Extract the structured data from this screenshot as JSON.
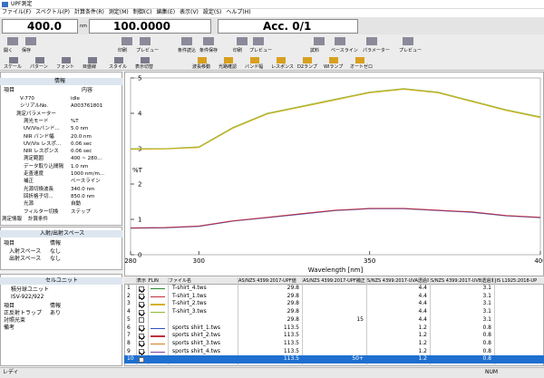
{
  "window": {
    "title": "UPF測定"
  },
  "menu": [
    "ファイル(F)",
    "スペクトル(P)",
    "計算条件(R)",
    "測定(M)",
    "制御(C)",
    "編集(E)",
    "表示(V)",
    "設定(S)",
    "ヘルプ(H)"
  ],
  "readout": {
    "wavelength": "400.0",
    "unit": "nm",
    "value": "100.0000",
    "acc": "Acc. 0/1"
  },
  "toolbar1": [
    "開く",
    "保存",
    "印刷",
    "プレビュー",
    "条件読込",
    "条件保存",
    "印刷",
    "プレビュー",
    "試料",
    "ベースライン",
    "パラメーター",
    "プレビュー"
  ],
  "toolbar2": [
    "スケール",
    "パターン",
    "フォント",
    "目盛線",
    "スタイル",
    "表示切替",
    "波長移動",
    "光路確認",
    "バンド幅",
    "レスポンス",
    "D2ランプ",
    "WIランプ",
    "オートゼロ"
  ],
  "info_panel": {
    "title": "情報",
    "columns": [
      "項目",
      "内容"
    ],
    "rows": [
      [
        "V-770",
        "idle"
      ],
      [
        "シリアルNo.",
        "A003761801"
      ],
      [
        "測定パラメーター",
        null
      ],
      [
        "測光モード",
        "%T"
      ],
      [
        "UV/Visバンド...",
        "5.0 nm"
      ],
      [
        "NIR バンド幅",
        "20.0 nm"
      ],
      [
        "UV/Vis レスポ...",
        "0.06 sec"
      ],
      [
        "NIR レスポンス",
        "0.06 sec"
      ],
      [
        "測定範囲",
        "400 ~ 280..."
      ],
      [
        "データ取り込間隔",
        "1.0 nm"
      ],
      [
        "走査速度",
        "1000 nm/m..."
      ],
      [
        "補正",
        "ベースライン"
      ],
      [
        "光源切換波長",
        "340.0 nm"
      ],
      [
        "回折格子切...",
        "850.0 nm"
      ],
      [
        "光源",
        "自動"
      ],
      [
        "フィルター切換",
        "ステップ"
      ]
    ],
    "tabs": [
      "測定情報",
      "計算条件"
    ]
  },
  "space_panel": {
    "title": "入射/出射スペース",
    "columns": [
      "項目",
      "情報"
    ],
    "rows": [
      [
        "入射スペース",
        "なし"
      ],
      [
        "出射スペース",
        "なし"
      ]
    ]
  },
  "cell_panel": {
    "title": "セルユニット",
    "unit": "積分球ユニット",
    "model": "ISV-922/922",
    "columns": [
      "項目",
      "情報"
    ],
    "rows": [
      [
        "正反射トラップ",
        "あり"
      ],
      [
        "対照光束",
        null
      ],
      [
        "備考",
        null
      ]
    ]
  },
  "chart": {
    "ylabel": "%T",
    "xlabel": "Wavelength [nm]",
    "xlim": [
      280,
      400
    ],
    "ylim": [
      0,
      5
    ],
    "xticks": [
      280,
      300,
      350,
      400
    ],
    "yticks": [
      0,
      1,
      2,
      3,
      4,
      5
    ],
    "x": [
      280,
      290,
      300,
      310,
      320,
      330,
      340,
      350,
      360,
      370,
      380,
      390,
      400
    ],
    "series": [
      {
        "color": "#8fb83a",
        "values": [
          3.0,
          3.0,
          3.05,
          3.6,
          4.0,
          4.2,
          4.4,
          4.6,
          4.7,
          4.6,
          4.35,
          4.1,
          3.9
        ]
      },
      {
        "color": "#d4b020",
        "values": [
          2.98,
          2.99,
          3.03,
          3.58,
          3.98,
          4.18,
          4.38,
          4.58,
          4.68,
          4.58,
          4.33,
          4.08,
          3.88
        ]
      },
      {
        "color": "#3050c0",
        "values": [
          0.75,
          0.76,
          0.8,
          0.95,
          1.05,
          1.15,
          1.25,
          1.3,
          1.3,
          1.25,
          1.2,
          1.1,
          1.05
        ]
      },
      {
        "color": "#c03040",
        "values": [
          0.76,
          0.77,
          0.81,
          0.96,
          1.06,
          1.16,
          1.26,
          1.31,
          1.31,
          1.26,
          1.21,
          1.11,
          1.06
        ]
      }
    ]
  },
  "table": {
    "columns": [
      "表示",
      "FLIN",
      "ファイル名",
      "AS/NZS 4399:2017-UPF値",
      "AS/NZS 4399:2017-UPF補正",
      "S/NZS 4399:2017-UVA透過率",
      "S/NZS 4399:2017-UVB透過率",
      "JIS L1925:2018-UP"
    ],
    "rows": [
      {
        "no": 1,
        "show": true,
        "color": "#2a8a2a",
        "file": "T-shirt_4.tws",
        "cells": [
          29.8,
          null,
          4.4,
          3.1
        ]
      },
      {
        "no": 2,
        "show": true,
        "color": "#c03040",
        "file": "T-shirt_1.tws",
        "cells": [
          29.8,
          null,
          4.4,
          3.1
        ]
      },
      {
        "no": 3,
        "show": true,
        "color": "#d4b020",
        "file": "T-shirt_2.tws",
        "cells": [
          29.8,
          null,
          4.4,
          3.1
        ]
      },
      {
        "no": 4,
        "show": true,
        "color": "#8fb83a",
        "file": "T-shirt_3.tws",
        "cells": [
          29.8,
          null,
          4.4,
          3.1
        ]
      },
      {
        "no": 5,
        "show": false,
        "color": null,
        "file": null,
        "cells": [
          29.8,
          15,
          4.4,
          3.1
        ]
      },
      {
        "no": 6,
        "show": true,
        "color": "#3050c0",
        "file": "sports shirt_1.tws",
        "cells": [
          113.5,
          null,
          1.2,
          0.8
        ]
      },
      {
        "no": 7,
        "show": true,
        "color": "#c03040",
        "file": "sports shirt_2.tws",
        "cells": [
          113.5,
          null,
          1.2,
          0.8
        ]
      },
      {
        "no": 8,
        "show": true,
        "color": "#d08020",
        "file": "sports shirt_3.tws",
        "cells": [
          113.5,
          null,
          1.2,
          0.8
        ]
      },
      {
        "no": 9,
        "show": true,
        "color": "#8040a0",
        "file": "sports shirt_4.tws",
        "cells": [
          113.5,
          null,
          1.2,
          0.8
        ]
      },
      {
        "no": 10,
        "show": false,
        "color": null,
        "file": null,
        "cells": [
          113.5,
          "50+",
          1.2,
          0.8
        ]
      }
    ]
  },
  "status": {
    "left": "レディ",
    "right": "NUM"
  }
}
